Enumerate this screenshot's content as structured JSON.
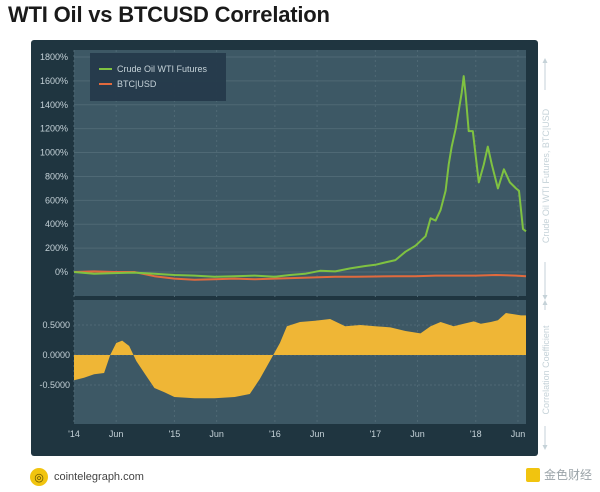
{
  "title": "WTI Oil vs BTCUSD Correlation",
  "footer": {
    "source": "cointelegraph.com",
    "watermark": "金色财经"
  },
  "colors": {
    "panel": "#1f3540",
    "plot": "#3d5865",
    "grid": "#4f6975",
    "text": "#c5d2d8",
    "oil": "#7fc241",
    "btc": "#e26a3d",
    "corr": "#efb636"
  },
  "chart_data": [
    {
      "type": "line",
      "y_axis_right_label": "Crude Oil WTI Futures, BTC|USD",
      "y_ticks": [
        "1800%",
        "1600%",
        "1400%",
        "1200%",
        "1000%",
        "800%",
        "600%",
        "400%",
        "200%",
        "0%"
      ],
      "ylim": [
        -100,
        1850
      ],
      "legend": {
        "placement": "top-left",
        "entries": [
          "Crude Oil WTI Futures",
          "BTC|USD"
        ]
      },
      "series": [
        {
          "name": "Crude Oil WTI Futures",
          "color": "#7fc241",
          "points": [
            [
              0.0,
              0
            ],
            [
              0.2,
              -15
            ],
            [
              0.35,
              -10
            ],
            [
              0.6,
              -5
            ],
            [
              0.8,
              -15
            ],
            [
              1.0,
              -25
            ],
            [
              1.2,
              -30
            ],
            [
              1.4,
              -40
            ],
            [
              1.6,
              -35
            ],
            [
              1.8,
              -30
            ],
            [
              2.0,
              -40
            ],
            [
              2.15,
              -25
            ],
            [
              2.3,
              -15
            ],
            [
              2.45,
              10
            ],
            [
              2.6,
              5
            ],
            [
              2.75,
              30
            ],
            [
              2.9,
              50
            ],
            [
              3.0,
              60
            ],
            [
              3.1,
              80
            ],
            [
              3.2,
              100
            ],
            [
              3.3,
              170
            ],
            [
              3.4,
              220
            ],
            [
              3.5,
              300
            ],
            [
              3.55,
              450
            ],
            [
              3.6,
              430
            ],
            [
              3.65,
              520
            ],
            [
              3.7,
              680
            ],
            [
              3.73,
              900
            ],
            [
              3.76,
              1050
            ],
            [
              3.8,
              1200
            ],
            [
              3.83,
              1350
            ],
            [
              3.86,
              1500
            ],
            [
              3.88,
              1640
            ],
            [
              3.9,
              1480
            ],
            [
              3.93,
              1180
            ],
            [
              3.97,
              1180
            ],
            [
              4.03,
              750
            ],
            [
              4.08,
              900
            ],
            [
              4.12,
              1050
            ],
            [
              4.16,
              900
            ],
            [
              4.22,
              700
            ],
            [
              4.28,
              860
            ],
            [
              4.34,
              750
            ],
            [
              4.4,
              700
            ],
            [
              4.43,
              680
            ],
            [
              4.47,
              360
            ],
            [
              4.5,
              340
            ]
          ]
        },
        {
          "name": "BTC|USD",
          "color": "#e26a3d",
          "points": [
            [
              0.0,
              0
            ],
            [
              0.2,
              5
            ],
            [
              0.4,
              0
            ],
            [
              0.6,
              0
            ],
            [
              0.8,
              -35
            ],
            [
              1.0,
              -55
            ],
            [
              1.2,
              -65
            ],
            [
              1.4,
              -60
            ],
            [
              1.6,
              -55
            ],
            [
              1.8,
              -60
            ],
            [
              2.0,
              -55
            ],
            [
              2.2,
              -50
            ],
            [
              2.4,
              -45
            ],
            [
              2.6,
              -40
            ],
            [
              2.8,
              -40
            ],
            [
              3.0,
              -38
            ],
            [
              3.2,
              -35
            ],
            [
              3.4,
              -35
            ],
            [
              3.6,
              -30
            ],
            [
              3.8,
              -30
            ],
            [
              4.0,
              -30
            ],
            [
              4.2,
              -25
            ],
            [
              4.4,
              -30
            ],
            [
              4.5,
              -35
            ]
          ]
        }
      ]
    },
    {
      "type": "area",
      "y_axis_right_label": "Correlation Coefficient",
      "y_ticks": [
        "0.5000",
        "0.0000",
        "-0.5000"
      ],
      "ylim": [
        -0.72,
        0.73
      ],
      "series": [
        {
          "name": "Correlation Coefficient",
          "color": "#efb636",
          "points": [
            [
              0.0,
              -0.42
            ],
            [
              0.1,
              -0.38
            ],
            [
              0.2,
              -0.32
            ],
            [
              0.3,
              -0.3
            ],
            [
              0.36,
              0.0
            ],
            [
              0.42,
              0.2
            ],
            [
              0.48,
              0.24
            ],
            [
              0.55,
              0.15
            ],
            [
              0.62,
              -0.1
            ],
            [
              0.7,
              -0.3
            ],
            [
              0.8,
              -0.55
            ],
            [
              0.9,
              -0.62
            ],
            [
              1.0,
              -0.7
            ],
            [
              1.2,
              -0.72
            ],
            [
              1.4,
              -0.72
            ],
            [
              1.6,
              -0.7
            ],
            [
              1.75,
              -0.65
            ],
            [
              1.85,
              -0.4
            ],
            [
              1.95,
              -0.1
            ],
            [
              2.05,
              0.2
            ],
            [
              2.12,
              0.48
            ],
            [
              2.25,
              0.55
            ],
            [
              2.4,
              0.57
            ],
            [
              2.55,
              0.6
            ],
            [
              2.7,
              0.48
            ],
            [
              2.85,
              0.5
            ],
            [
              3.0,
              0.48
            ],
            [
              3.15,
              0.46
            ],
            [
              3.3,
              0.4
            ],
            [
              3.45,
              0.36
            ],
            [
              3.55,
              0.48
            ],
            [
              3.65,
              0.55
            ],
            [
              3.78,
              0.48
            ],
            [
              3.88,
              0.52
            ],
            [
              3.98,
              0.56
            ],
            [
              4.05,
              0.52
            ],
            [
              4.15,
              0.55
            ],
            [
              4.22,
              0.58
            ],
            [
              4.3,
              0.7
            ],
            [
              4.38,
              0.68
            ],
            [
              4.45,
              0.66
            ],
            [
              4.5,
              0.66
            ]
          ]
        }
      ]
    }
  ],
  "x_ticks": [
    {
      "label": "'14",
      "t": 0.0
    },
    {
      "label": "Jun",
      "t": 0.42
    },
    {
      "label": "'15",
      "t": 1.0
    },
    {
      "label": "Jun",
      "t": 1.42
    },
    {
      "label": "'16",
      "t": 2.0
    },
    {
      "label": "Jun",
      "t": 2.42
    },
    {
      "label": "'17",
      "t": 3.0
    },
    {
      "label": "Jun",
      "t": 3.42
    },
    {
      "label": "'18",
      "t": 4.0
    },
    {
      "label": "Jun",
      "t": 4.42
    }
  ]
}
